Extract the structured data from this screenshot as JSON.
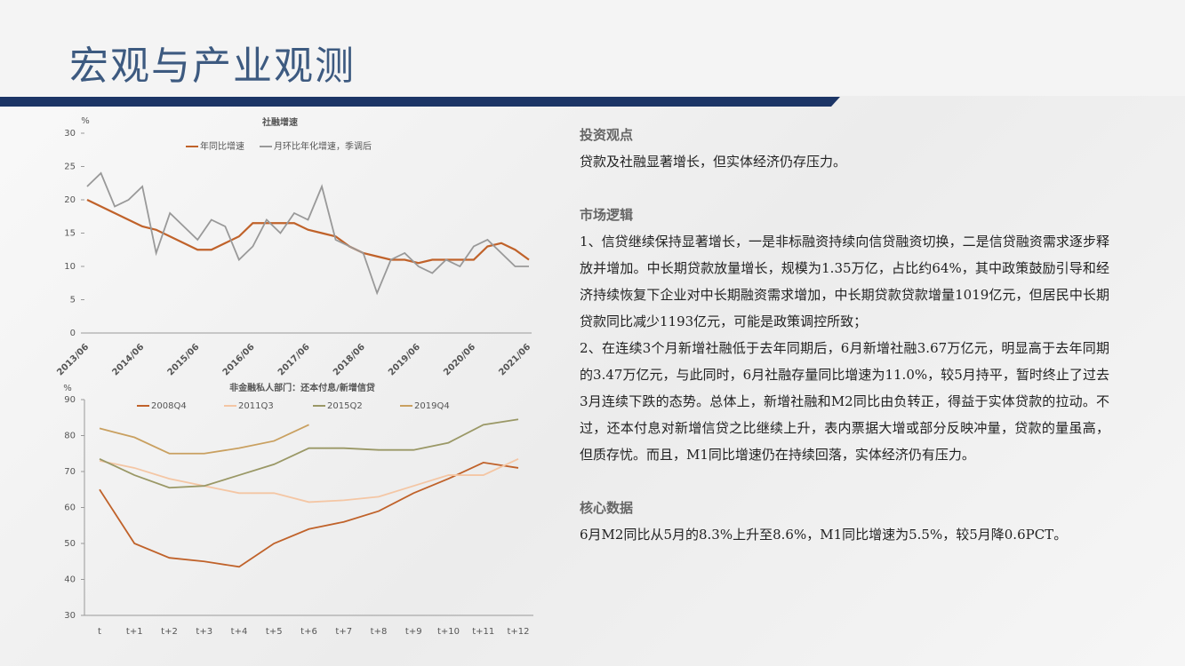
{
  "header": {
    "title": "宏观与产业观测"
  },
  "chart_data": [
    {
      "type": "line",
      "title": "社融增速",
      "y_unit": "%",
      "categories": [
        "2013/06",
        null,
        null,
        null,
        "2014/06",
        null,
        null,
        null,
        "2015/06",
        null,
        null,
        null,
        "2016/06",
        null,
        null,
        null,
        "2017/06",
        null,
        null,
        null,
        "2018/06",
        null,
        null,
        null,
        "2019/06",
        null,
        null,
        null,
        "2020/06",
        null,
        null,
        null,
        "2021/06"
      ],
      "series": [
        {
          "name": "年同比增速",
          "color": "#c0622a",
          "values": [
            20,
            19,
            18,
            17,
            16,
            15.5,
            14.5,
            13.5,
            12.5,
            12.5,
            13.5,
            14.5,
            16.5,
            16.5,
            16.5,
            16.5,
            15.5,
            15,
            14.5,
            13,
            12,
            11.5,
            11,
            11,
            10.5,
            11,
            11,
            11,
            11,
            13,
            13.5,
            12.5,
            11
          ]
        },
        {
          "name": "月环比年化增速，季调后",
          "color": "#999999",
          "values": [
            22,
            24,
            19,
            20,
            22,
            12,
            18,
            16,
            14,
            17,
            16,
            11,
            13,
            17,
            15,
            18,
            17,
            22,
            14,
            13,
            12,
            6,
            11,
            12,
            10,
            9,
            11,
            10,
            13,
            14,
            12,
            10,
            10
          ]
        }
      ],
      "ylim": [
        0,
        30
      ],
      "yticks": [
        0,
        5,
        10,
        15,
        20,
        25,
        30
      ]
    },
    {
      "type": "line",
      "title": "非金融私人部门：还本付息/新增信贷",
      "y_unit": "%",
      "categories": [
        "t",
        "t+1",
        "t+2",
        "t+3",
        "t+4",
        "t+5",
        "t+6",
        "t+7",
        "t+8",
        "t+9",
        "t+10",
        "t+11",
        "t+12"
      ],
      "series": [
        {
          "name": "2008Q4",
          "color": "#c0622a",
          "values": [
            65,
            50,
            46,
            45,
            43.5,
            50,
            54,
            56,
            59,
            64,
            68,
            72.5,
            71
          ]
        },
        {
          "name": "2011Q3",
          "color": "#f4c6a4",
          "values": [
            73,
            71,
            68,
            66,
            64,
            64,
            61.5,
            62,
            63,
            66,
            69,
            69,
            73.5
          ]
        },
        {
          "name": "2015Q2",
          "color": "#9a9866",
          "values": [
            73.5,
            69,
            65.5,
            66,
            69,
            72,
            76.5,
            76.5,
            76,
            76,
            78,
            83,
            84.5
          ]
        },
        {
          "name": "2019Q4",
          "color": "#c9a060",
          "values": [
            82,
            79.5,
            75,
            75,
            76.5,
            78.5,
            83,
            null,
            null,
            null,
            null,
            null,
            null
          ]
        }
      ],
      "ylim": [
        30,
        90
      ],
      "yticks": [
        30,
        40,
        50,
        60,
        70,
        80,
        90
      ]
    }
  ],
  "sections": [
    {
      "heading": "投资观点",
      "paragraphs": [
        "贷款及社融显著增长，但实体经济仍存压力。"
      ]
    },
    {
      "heading": "市场逻辑",
      "paragraphs": [
        "1、信贷继续保持显著增长，一是非标融资持续向信贷融资切换，二是信贷融资需求逐步释放并增加。中长期贷款放量增长，规模为1.35万亿，占比约64%，其中政策鼓励引导和经济持续恢复下企业对中长期融资需求增加，中长期贷款贷款增量1019亿元，但居民中长期贷款同比减少1193亿元，可能是政策调控所致；",
        "2、在连续3个月新增社融低于去年同期后，6月新增社融3.67万亿元，明显高于去年同期的3.47万亿元，与此同时，6月社融存量同比增速为11.0%，较5月持平，暂时终止了过去3月连续下跌的态势。总体上，新增社融和M2同比由负转正，得益于实体贷款的拉动。不过，还本付息对新增信贷之比继续上升，表内票据大增或部分反映冲量，贷款的量虽高，但质存忧。而且，M1同比增速仍在持续回落，实体经济仍有压力。"
      ]
    },
    {
      "heading": "核心数据",
      "paragraphs": [
        "6月M2同比从5月的8.3%上升至8.6%，M1同比增速为5.5%，较5月降0.6PCT。"
      ]
    }
  ]
}
